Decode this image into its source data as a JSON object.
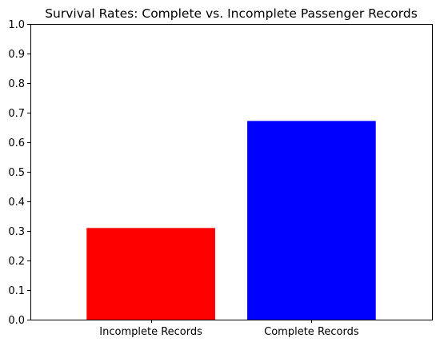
{
  "chart_data": {
    "type": "bar",
    "title": "Survival Rates: Complete vs. Incomplete Passenger Records",
    "xlabel": "",
    "ylabel": "",
    "categories": [
      "Incomplete Records",
      "Complete Records"
    ],
    "values": [
      0.31,
      0.672
    ],
    "bar_colors": [
      "#ff0000",
      "#0000ff"
    ],
    "ylim": [
      0,
      1.0
    ],
    "yticks": [
      0.0,
      0.1,
      0.2,
      0.3,
      0.4,
      0.5,
      0.6,
      0.7,
      0.8,
      0.9,
      1.0
    ],
    "ytick_labels": [
      "0.0",
      "0.1",
      "0.2",
      "0.3",
      "0.4",
      "0.5",
      "0.6",
      "0.7",
      "0.8",
      "0.9",
      "1.0"
    ],
    "grid": false,
    "legend": "none"
  }
}
